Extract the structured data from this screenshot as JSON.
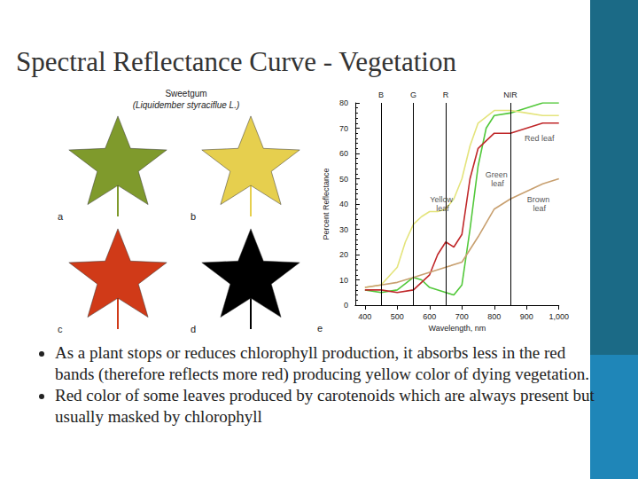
{
  "title": "Spectral Reflectance Curve - Vegetation",
  "figure": {
    "title": "Sweetgum",
    "subtitle": "(Liquidember styraciflue L.)",
    "panels": [
      {
        "label": "a",
        "color": "#7f9a2c"
      },
      {
        "label": "b",
        "color": "#e6cf4e"
      },
      {
        "label": "c",
        "color": "#d03a18"
      },
      {
        "label": "d",
        "color": "#000000"
      }
    ],
    "chart_label": "e"
  },
  "chart_data": {
    "type": "line",
    "x_label": "Wavelength, nm",
    "y_label": "Percent Reflectance",
    "xlim": [
      370,
      1000
    ],
    "xticks": [
      400,
      500,
      600,
      700,
      800,
      900,
      {
        "value": 1000,
        "label": "1,000"
      }
    ],
    "ylim": [
      0,
      80
    ],
    "yticks": [
      0,
      10,
      20,
      30,
      40,
      50,
      60,
      70,
      80
    ],
    "grid": false,
    "series": [
      {
        "name": "Green leaf",
        "color": "#52c83a",
        "x": [
          400,
          450,
          500,
          550,
          575,
          600,
          650,
          675,
          700,
          725,
          750,
          775,
          800,
          850,
          900,
          950,
          1000
        ],
        "values": [
          6,
          5,
          6,
          11,
          10,
          7,
          5,
          4,
          8,
          30,
          55,
          70,
          75,
          76,
          78,
          80,
          80
        ]
      },
      {
        "name": "Yellow leaf",
        "color": "#e4e47c",
        "x": [
          400,
          450,
          500,
          525,
          550,
          575,
          600,
          625,
          650,
          675,
          700,
          725,
          750,
          800,
          850,
          900,
          950,
          1000
        ],
        "values": [
          7,
          8,
          15,
          25,
          32,
          35,
          37,
          37,
          38,
          42,
          50,
          63,
          72,
          77,
          77,
          76,
          75,
          75
        ]
      },
      {
        "name": "Red leaf",
        "color": "#c0282a",
        "x": [
          400,
          450,
          500,
          550,
          600,
          625,
          650,
          675,
          700,
          725,
          750,
          800,
          850,
          900,
          950,
          1000
        ],
        "values": [
          6,
          6,
          5,
          6,
          12,
          20,
          25,
          23,
          28,
          50,
          62,
          68,
          68,
          70,
          72,
          72
        ]
      },
      {
        "name": "Brown leaf",
        "color": "#c8a070",
        "x": [
          400,
          450,
          500,
          550,
          600,
          650,
          700,
          750,
          800,
          850,
          900,
          950,
          1000
        ],
        "values": [
          7,
          8,
          9,
          11,
          13,
          15,
          17,
          27,
          38,
          42,
          45,
          48,
          50
        ]
      }
    ],
    "bands": [
      {
        "label": "B",
        "x": 450
      },
      {
        "label": "G",
        "x": 550
      },
      {
        "label": "R",
        "x": 650
      },
      {
        "label": "NIR",
        "x": 850
      }
    ],
    "annotations": [
      {
        "text": "Red leaf",
        "x": 940,
        "y": 66
      },
      {
        "text": "Green leaf",
        "x": 810,
        "y": 50
      },
      {
        "text": "Yellow leaf",
        "x": 640,
        "y": 40
      },
      {
        "text": "Brown leaf",
        "x": 940,
        "y": 40
      }
    ]
  },
  "bullets": [
    "As a plant stops or reduces chlorophyll production, it absorbs less in the red bands (therefore reflects more red) producing yellow color of dying vegetation.",
    "Red color of some leaves produced by carotenoids which are always present but usually masked by chlorophyll"
  ]
}
